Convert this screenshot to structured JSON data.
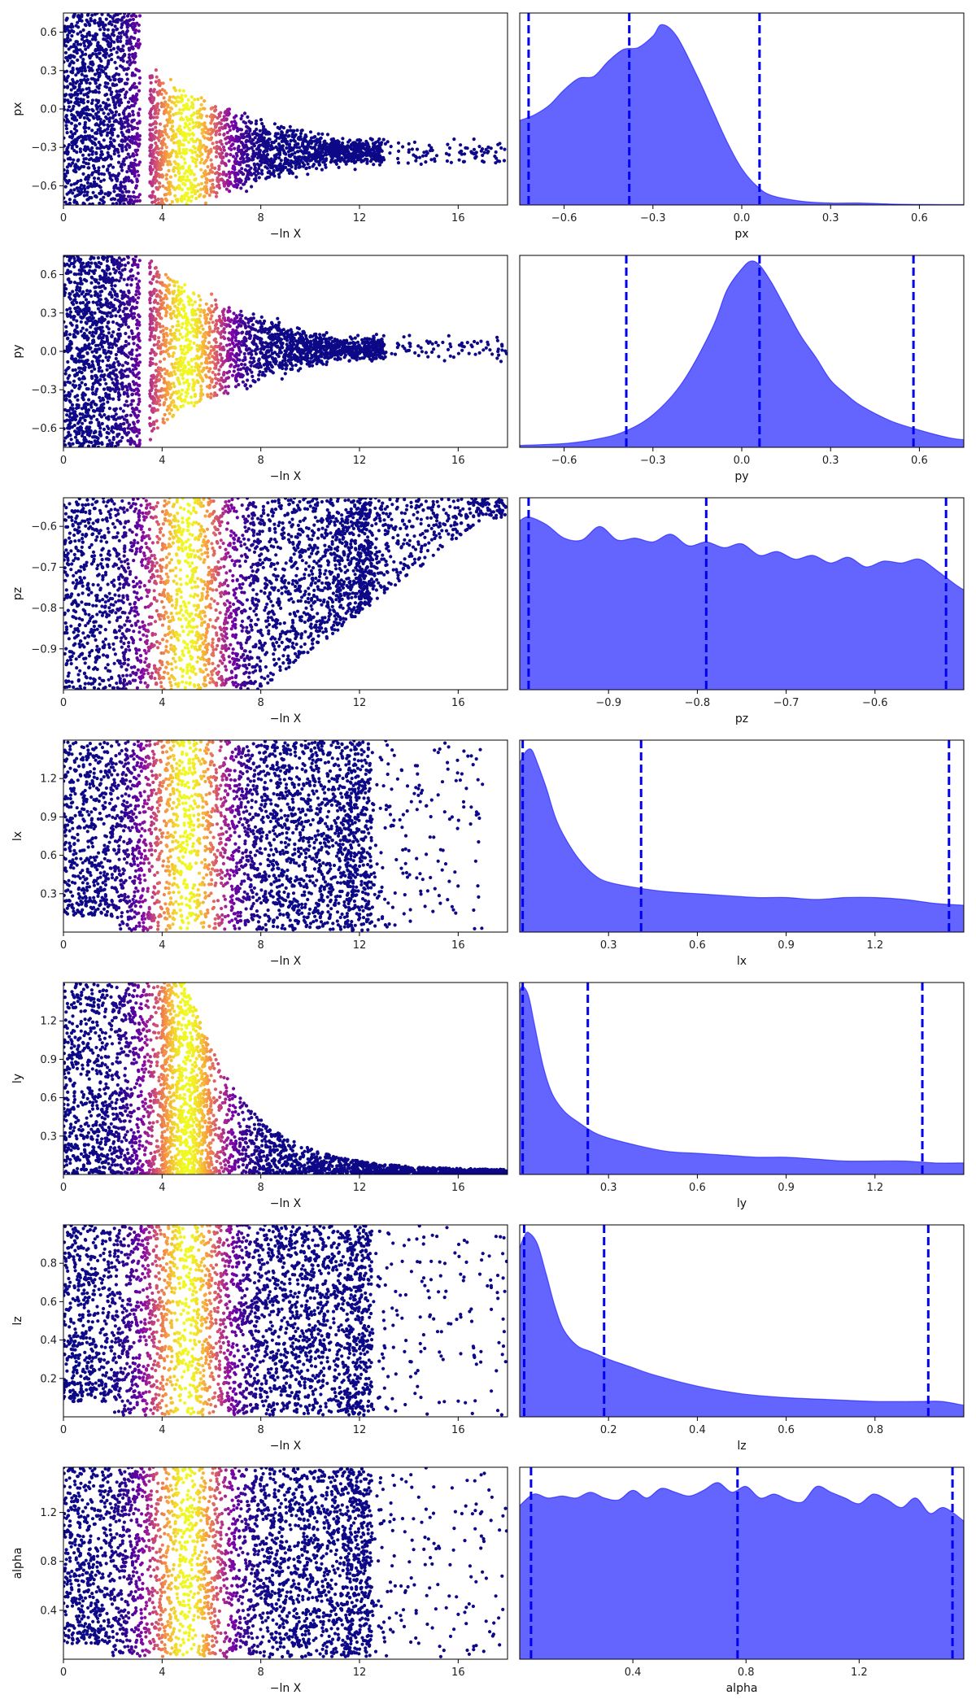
{
  "figure": {
    "scatter_xlabel": "−ln X",
    "point_colormap": [
      "#0d0887",
      "#7e03a8",
      "#cc4778",
      "#f89540",
      "#f0f921"
    ],
    "kde_fill_color": "#6464ff",
    "kde_line_color": "#0000ff"
  },
  "chart_data": [
    {
      "type": "scatter",
      "param": "px",
      "ylabel": "px",
      "xlabel": "−ln X",
      "xlim": [
        0,
        18
      ],
      "xticks": [
        0,
        4,
        8,
        12,
        16
      ],
      "ylim": [
        -0.75,
        0.75
      ],
      "yticks": [
        0.6,
        0.3,
        0.0,
        -0.3,
        -0.6
      ],
      "ytick_labels": [
        "0.6",
        "0.3",
        "0.0",
        "−0.3",
        "−0.6"
      ],
      "tail": {
        "start": 3.5,
        "center": -0.33,
        "width_start": 0.65,
        "width_end": 0.07,
        "max_x": 18
      }
    },
    {
      "type": "area",
      "param": "px",
      "xlabel": "px",
      "xlim": [
        -0.75,
        0.75
      ],
      "xticks": [
        -0.6,
        -0.3,
        0.0,
        0.3,
        0.6
      ],
      "xtick_labels": [
        "−0.6",
        "−0.3",
        "0.0",
        "0.3",
        "0.6"
      ],
      "quantiles": [
        -0.72,
        -0.38,
        0.06
      ],
      "density": {
        "x": [
          -0.75,
          -0.7,
          -0.65,
          -0.6,
          -0.55,
          -0.5,
          -0.45,
          -0.4,
          -0.35,
          -0.3,
          -0.27,
          -0.22,
          -0.15,
          -0.1,
          -0.05,
          0.0,
          0.05,
          0.1,
          0.2,
          0.3,
          0.4,
          0.5,
          0.6,
          0.75
        ],
        "y": [
          0.44,
          0.47,
          0.52,
          0.6,
          0.66,
          0.67,
          0.75,
          0.81,
          0.82,
          0.88,
          0.94,
          0.88,
          0.67,
          0.5,
          0.33,
          0.19,
          0.1,
          0.05,
          0.02,
          0.01,
          0.01,
          0.005,
          0.003,
          0.002
        ]
      }
    },
    {
      "type": "scatter",
      "param": "py",
      "ylabel": "py",
      "xlabel": "−ln X",
      "xlim": [
        0,
        18
      ],
      "xticks": [
        0,
        4,
        8,
        12,
        16
      ],
      "ylim": [
        -0.75,
        0.75
      ],
      "yticks": [
        0.6,
        0.3,
        0.0,
        -0.3,
        -0.6
      ],
      "ytick_labels": [
        "0.6",
        "0.3",
        "0.0",
        "−0.3",
        "−0.6"
      ],
      "tail": {
        "start": 3.5,
        "center": 0.02,
        "width_start": 0.7,
        "width_end": 0.06,
        "max_x": 18
      }
    },
    {
      "type": "area",
      "param": "py",
      "xlabel": "py",
      "xlim": [
        -0.75,
        0.75
      ],
      "xticks": [
        -0.6,
        -0.3,
        0.0,
        0.3,
        0.6
      ],
      "xtick_labels": [
        "−0.6",
        "−0.3",
        "0.0",
        "0.3",
        "0.6"
      ],
      "quantiles": [
        -0.39,
        0.06,
        0.58
      ],
      "density": {
        "x": [
          -0.75,
          -0.6,
          -0.5,
          -0.4,
          -0.3,
          -0.2,
          -0.1,
          -0.05,
          0.0,
          0.03,
          0.06,
          0.1,
          0.15,
          0.2,
          0.25,
          0.3,
          0.35,
          0.4,
          0.5,
          0.6,
          0.7,
          0.75
        ],
        "y": [
          0.01,
          0.02,
          0.04,
          0.08,
          0.17,
          0.34,
          0.62,
          0.82,
          0.93,
          0.97,
          0.95,
          0.86,
          0.72,
          0.58,
          0.47,
          0.35,
          0.28,
          0.22,
          0.14,
          0.09,
          0.05,
          0.04
        ]
      }
    },
    {
      "type": "scatter",
      "param": "pz",
      "ylabel": "pz",
      "xlabel": "−ln X",
      "xlim": [
        0,
        18
      ],
      "xticks": [
        0,
        4,
        8,
        12,
        16
      ],
      "ylim": [
        -1.0,
        -0.53
      ],
      "yticks": [
        -0.6,
        -0.7,
        -0.8,
        -0.9
      ],
      "ytick_labels": [
        "−0.6",
        "−0.7",
        "−0.8",
        "−0.9"
      ],
      "wedge": {
        "x0": 8,
        "x1": 17,
        "low_at_x0": -1.0,
        "low_at_x1": -0.58
      }
    },
    {
      "type": "area",
      "param": "pz",
      "xlabel": "pz",
      "xlim": [
        -1.0,
        -0.5
      ],
      "xticks": [
        -0.9,
        -0.8,
        -0.7,
        -0.6
      ],
      "xtick_labels": [
        "−0.9",
        "−0.8",
        "−0.7",
        "−0.6"
      ],
      "quantiles": [
        -0.99,
        -0.79,
        -0.52
      ],
      "density": {
        "x": [
          -1.0,
          -0.99,
          -0.97,
          -0.95,
          -0.93,
          -0.91,
          -0.89,
          -0.87,
          -0.85,
          -0.83,
          -0.81,
          -0.79,
          -0.77,
          -0.75,
          -0.73,
          -0.71,
          -0.69,
          -0.67,
          -0.65,
          -0.63,
          -0.61,
          -0.59,
          -0.57,
          -0.55,
          -0.53,
          -0.51,
          -0.5
        ],
        "y": [
          0.88,
          0.9,
          0.86,
          0.79,
          0.78,
          0.85,
          0.78,
          0.79,
          0.77,
          0.81,
          0.75,
          0.77,
          0.74,
          0.76,
          0.7,
          0.72,
          0.68,
          0.7,
          0.66,
          0.69,
          0.64,
          0.67,
          0.66,
          0.68,
          0.62,
          0.55,
          0.52
        ]
      }
    },
    {
      "type": "scatter",
      "param": "lx",
      "ylabel": "lx",
      "xlabel": "−ln X",
      "xlim": [
        0,
        18
      ],
      "xticks": [
        0,
        4,
        8,
        12,
        16
      ],
      "ylim": [
        0.0,
        1.5
      ],
      "yticks": [
        1.2,
        0.9,
        0.6,
        0.3
      ],
      "ytick_labels": [
        "1.2",
        "0.9",
        "0.6",
        "0.3"
      ],
      "cloud": {
        "x_end": 12.5,
        "x_tail": 17
      }
    },
    {
      "type": "area",
      "param": "lx",
      "xlabel": "lx",
      "xlim": [
        0.0,
        1.5
      ],
      "xticks": [
        0.3,
        0.6,
        0.9,
        1.2
      ],
      "xtick_labels": [
        "0.3",
        "0.6",
        "0.9",
        "1.2"
      ],
      "quantiles": [
        0.01,
        0.41,
        1.45
      ],
      "density": {
        "x": [
          0.0,
          0.02,
          0.04,
          0.06,
          0.09,
          0.12,
          0.15,
          0.2,
          0.25,
          0.3,
          0.4,
          0.5,
          0.6,
          0.7,
          0.8,
          0.9,
          1.0,
          1.1,
          1.2,
          1.3,
          1.4,
          1.5
        ],
        "y": [
          0.88,
          0.94,
          0.95,
          0.88,
          0.75,
          0.6,
          0.5,
          0.38,
          0.3,
          0.26,
          0.23,
          0.21,
          0.2,
          0.19,
          0.18,
          0.18,
          0.17,
          0.18,
          0.18,
          0.17,
          0.15,
          0.14
        ]
      }
    },
    {
      "type": "scatter",
      "param": "ly",
      "ylabel": "ly",
      "xlabel": "−ln X",
      "xlim": [
        0,
        18
      ],
      "xticks": [
        0,
        4,
        8,
        12,
        16
      ],
      "ylim": [
        0.0,
        1.5
      ],
      "yticks": [
        1.2,
        0.9,
        0.6,
        0.3
      ],
      "ytick_labels": [
        "1.2",
        "0.9",
        "0.6",
        "0.3"
      ],
      "decay": {
        "start": 5,
        "top": 1.5,
        "floor": 0.03,
        "end": 18
      }
    },
    {
      "type": "area",
      "param": "ly",
      "xlabel": "ly",
      "xlim": [
        0.0,
        1.5
      ],
      "xticks": [
        0.3,
        0.6,
        0.9,
        1.2
      ],
      "xtick_labels": [
        "0.3",
        "0.6",
        "0.9",
        "1.2"
      ],
      "quantiles": [
        0.01,
        0.23,
        1.36
      ],
      "density": {
        "x": [
          0.0,
          0.01,
          0.03,
          0.05,
          0.08,
          0.11,
          0.15,
          0.2,
          0.25,
          0.3,
          0.4,
          0.5,
          0.6,
          0.7,
          0.8,
          0.9,
          1.0,
          1.1,
          1.2,
          1.3,
          1.4,
          1.5
        ],
        "y": [
          0.95,
          0.98,
          0.93,
          0.78,
          0.56,
          0.42,
          0.33,
          0.27,
          0.22,
          0.19,
          0.15,
          0.12,
          0.11,
          0.1,
          0.09,
          0.09,
          0.08,
          0.07,
          0.07,
          0.07,
          0.06,
          0.06
        ]
      }
    },
    {
      "type": "scatter",
      "param": "lz",
      "ylabel": "lz",
      "xlabel": "−ln X",
      "xlim": [
        0,
        18
      ],
      "xticks": [
        0,
        4,
        8,
        12,
        16
      ],
      "ylim": [
        0.0,
        1.0
      ],
      "yticks": [
        0.8,
        0.6,
        0.4,
        0.2
      ],
      "ytick_labels": [
        "0.8",
        "0.6",
        "0.4",
        "0.2"
      ],
      "cloud": {
        "x_end": 12.5,
        "x_tail": 18
      }
    },
    {
      "type": "area",
      "param": "lz",
      "xlabel": "lz",
      "xlim": [
        0.0,
        1.0
      ],
      "xticks": [
        0.2,
        0.4,
        0.6,
        0.8
      ],
      "xtick_labels": [
        "0.2",
        "0.4",
        "0.6",
        "0.8"
      ],
      "quantiles": [
        0.01,
        0.19,
        0.92
      ],
      "density": {
        "x": [
          0.0,
          0.01,
          0.02,
          0.04,
          0.06,
          0.08,
          0.1,
          0.13,
          0.16,
          0.2,
          0.25,
          0.3,
          0.4,
          0.5,
          0.6,
          0.7,
          0.8,
          0.9,
          0.95,
          1.0
        ],
        "y": [
          0.88,
          0.94,
          0.96,
          0.9,
          0.74,
          0.57,
          0.45,
          0.37,
          0.34,
          0.3,
          0.26,
          0.22,
          0.16,
          0.12,
          0.1,
          0.09,
          0.08,
          0.08,
          0.08,
          0.06
        ]
      }
    },
    {
      "type": "scatter",
      "param": "alpha",
      "ylabel": "alpha",
      "xlabel": "−ln X",
      "xlim": [
        0,
        18
      ],
      "xticks": [
        0,
        4,
        8,
        12,
        16
      ],
      "ylim": [
        0.0,
        1.57
      ],
      "yticks": [
        1.2,
        0.8,
        0.4
      ],
      "ytick_labels": [
        "1.2",
        "0.8",
        "0.4"
      ],
      "cloud": {
        "x_end": 12.5,
        "x_tail": 18
      }
    },
    {
      "type": "area",
      "param": "alpha",
      "xlabel": "alpha",
      "xlim": [
        0.0,
        1.57
      ],
      "xticks": [
        0.4,
        0.8,
        1.2
      ],
      "xtick_labels": [
        "0.4",
        "0.8",
        "1.2"
      ],
      "quantiles": [
        0.04,
        0.77,
        1.53
      ],
      "density": {
        "x": [
          0.0,
          0.05,
          0.1,
          0.15,
          0.2,
          0.25,
          0.3,
          0.35,
          0.4,
          0.45,
          0.5,
          0.55,
          0.6,
          0.65,
          0.7,
          0.75,
          0.8,
          0.85,
          0.9,
          0.95,
          1.0,
          1.05,
          1.1,
          1.15,
          1.2,
          1.25,
          1.3,
          1.35,
          1.4,
          1.45,
          1.5,
          1.57
        ],
        "y": [
          0.8,
          0.86,
          0.84,
          0.85,
          0.84,
          0.87,
          0.84,
          0.83,
          0.88,
          0.84,
          0.89,
          0.87,
          0.85,
          0.88,
          0.92,
          0.87,
          0.9,
          0.84,
          0.86,
          0.83,
          0.82,
          0.9,
          0.87,
          0.84,
          0.81,
          0.86,
          0.83,
          0.79,
          0.84,
          0.76,
          0.79,
          0.72
        ]
      }
    }
  ]
}
